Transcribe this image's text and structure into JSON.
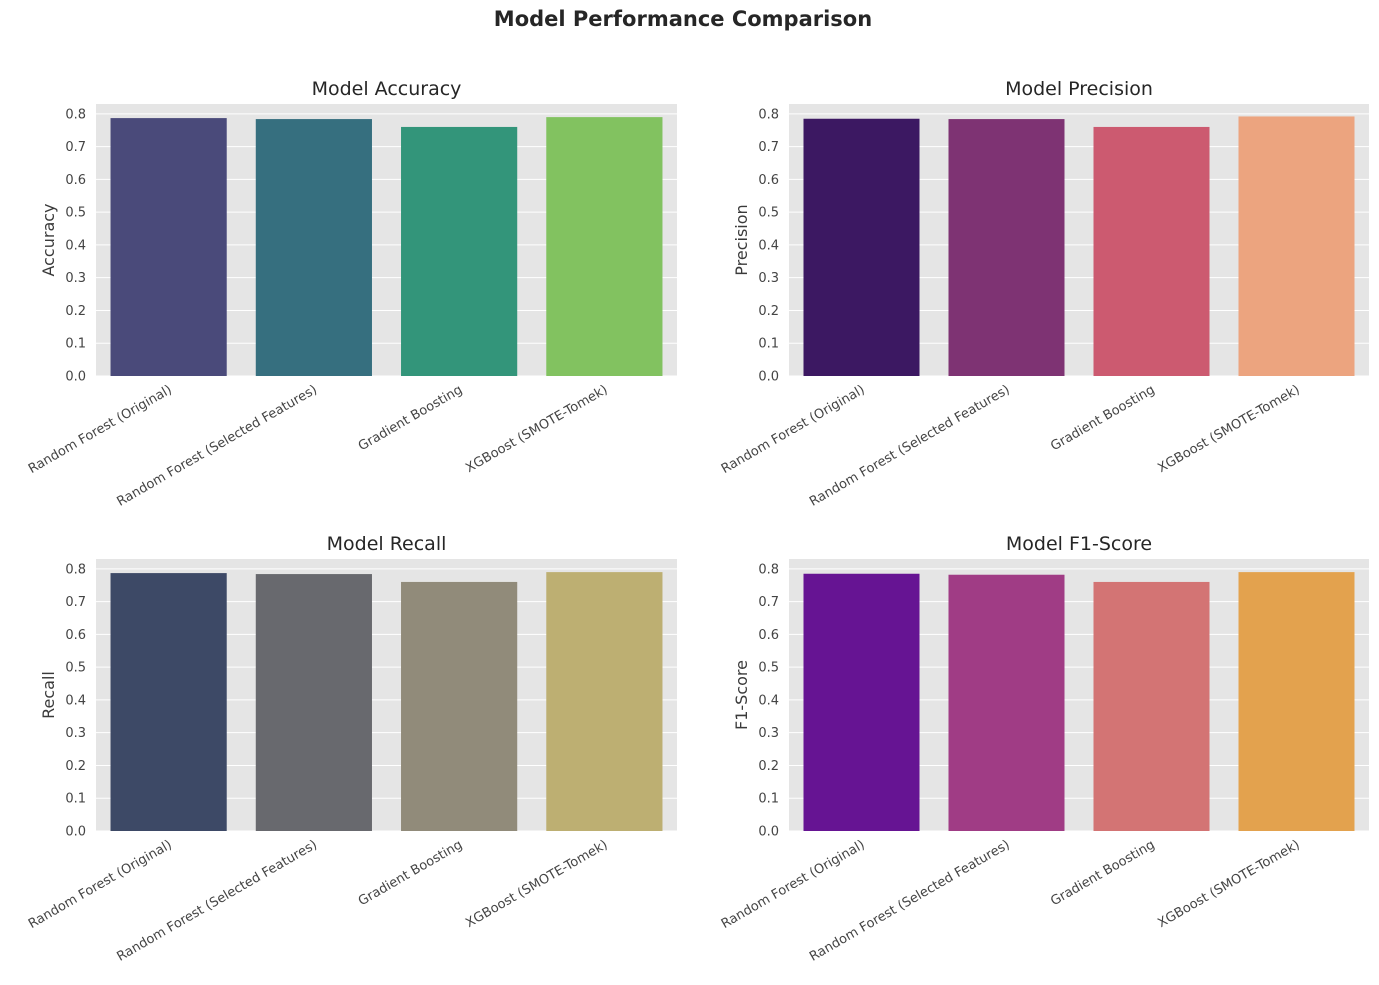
{
  "figure": {
    "title": "Model Performance Comparison",
    "background": "#ffffff",
    "axes_background": "#e5e5e5",
    "grid_color": "#ffffff"
  },
  "chart_data": [
    {
      "type": "bar",
      "title": "Model Accuracy",
      "xlabel": "",
      "ylabel": "Accuracy",
      "categories": [
        "Random Forest (Original)",
        "Random Forest (Selected Features)",
        "Gradient Boosting",
        "XGBoost (SMOTE-Tomek)"
      ],
      "values": [
        0.787,
        0.784,
        0.76,
        0.79
      ],
      "colors": [
        "#4a4a7a",
        "#366f7f",
        "#33957a",
        "#82c260"
      ],
      "ylim": [
        0,
        0.83
      ],
      "yticks": [
        "0.0",
        "0.1",
        "0.2",
        "0.3",
        "0.4",
        "0.5",
        "0.6",
        "0.7",
        "0.8"
      ],
      "grid": true
    },
    {
      "type": "bar",
      "title": "Model Precision",
      "xlabel": "",
      "ylabel": "Precision",
      "categories": [
        "Random Forest (Original)",
        "Random Forest (Selected Features)",
        "Gradient Boosting",
        "XGBoost (SMOTE-Tomek)"
      ],
      "values": [
        0.785,
        0.784,
        0.76,
        0.792
      ],
      "colors": [
        "#3c1862",
        "#7e3373",
        "#cc5a70",
        "#eca47f"
      ],
      "ylim": [
        0,
        0.83
      ],
      "yticks": [
        "0.0",
        "0.1",
        "0.2",
        "0.3",
        "0.4",
        "0.5",
        "0.6",
        "0.7",
        "0.8"
      ],
      "grid": true
    },
    {
      "type": "bar",
      "title": "Model Recall",
      "xlabel": "",
      "ylabel": "Recall",
      "categories": [
        "Random Forest (Original)",
        "Random Forest (Selected Features)",
        "Gradient Boosting",
        "XGBoost (SMOTE-Tomek)"
      ],
      "values": [
        0.787,
        0.784,
        0.76,
        0.79
      ],
      "colors": [
        "#3d4966",
        "#68696e",
        "#918b7a",
        "#bdaf72"
      ],
      "ylim": [
        0,
        0.83
      ],
      "yticks": [
        "0.0",
        "0.1",
        "0.2",
        "0.3",
        "0.4",
        "0.5",
        "0.6",
        "0.7",
        "0.8"
      ],
      "grid": true
    },
    {
      "type": "bar",
      "title": "Model F1-Score",
      "xlabel": "",
      "ylabel": "F1-Score",
      "categories": [
        "Random Forest (Original)",
        "Random Forest (Selected Features)",
        "Gradient Boosting",
        "XGBoost (SMOTE-Tomek)"
      ],
      "values": [
        0.785,
        0.782,
        0.76,
        0.79
      ],
      "colors": [
        "#661493",
        "#a03c85",
        "#d37474",
        "#e3a24e"
      ],
      "ylim": [
        0,
        0.83
      ],
      "yticks": [
        "0.0",
        "0.1",
        "0.2",
        "0.3",
        "0.4",
        "0.5",
        "0.6",
        "0.7",
        "0.8"
      ],
      "grid": true
    }
  ]
}
